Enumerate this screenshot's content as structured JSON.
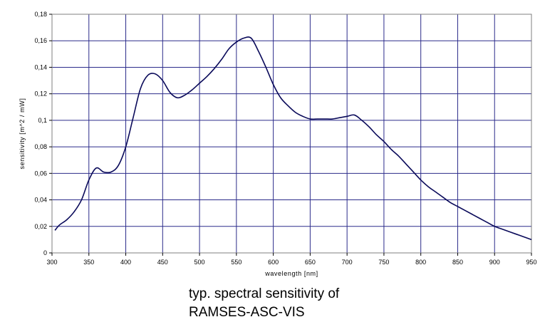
{
  "chart_data": {
    "type": "line",
    "xlabel": "wavelength [nm]",
    "ylabel": "sensitivity [m^2 / mW]",
    "xlim": [
      300,
      950
    ],
    "ylim": [
      0,
      0.18
    ],
    "x_ticks": [
      300,
      350,
      400,
      450,
      500,
      550,
      600,
      650,
      700,
      750,
      800,
      850,
      900,
      950
    ],
    "x_tick_labels": [
      "300",
      "350",
      "400",
      "450",
      "500",
      "550",
      "600",
      "650",
      "700",
      "750",
      "800",
      "850",
      "900",
      "950"
    ],
    "y_ticks": [
      0,
      0.02,
      0.04,
      0.06,
      0.08,
      0.1,
      0.12,
      0.14,
      0.16,
      0.18
    ],
    "y_tick_labels": [
      "0",
      "0,02",
      "0,04",
      "0,06",
      "0,08",
      "0,1",
      "0,12",
      "0,14",
      "0,16",
      "0,18"
    ],
    "grid": true,
    "legend": "none",
    "series": [
      {
        "color": "#0a0a5a",
        "x": [
          304,
          310,
          320,
          330,
          340,
          350,
          360,
          370,
          380,
          390,
          400,
          410,
          420,
          430,
          440,
          450,
          460,
          470,
          480,
          490,
          500,
          510,
          520,
          530,
          540,
          550,
          560,
          570,
          580,
          590,
          600,
          610,
          620,
          630,
          640,
          650,
          660,
          670,
          680,
          690,
          700,
          710,
          720,
          730,
          740,
          750,
          760,
          770,
          780,
          790,
          800,
          810,
          820,
          830,
          840,
          850,
          860,
          870,
          880,
          890,
          900,
          910,
          920,
          930,
          940,
          950
        ],
        "y": [
          0.017,
          0.021,
          0.025,
          0.031,
          0.04,
          0.055,
          0.064,
          0.061,
          0.061,
          0.066,
          0.08,
          0.102,
          0.124,
          0.134,
          0.135,
          0.13,
          0.121,
          0.117,
          0.119,
          0.123,
          0.128,
          0.133,
          0.139,
          0.146,
          0.154,
          0.159,
          0.162,
          0.162,
          0.152,
          0.14,
          0.127,
          0.117,
          0.111,
          0.106,
          0.103,
          0.101,
          0.101,
          0.101,
          0.101,
          0.102,
          0.103,
          0.104,
          0.1,
          0.095,
          0.089,
          0.084,
          0.078,
          0.073,
          0.067,
          0.061,
          0.055,
          0.05,
          0.046,
          0.042,
          0.038,
          0.035,
          0.032,
          0.029,
          0.026,
          0.023,
          0.02,
          0.018,
          0.016,
          0.014,
          0.012,
          0.01
        ]
      }
    ]
  },
  "caption": {
    "line1": "typ. spectral sensitivity of",
    "line2": "RAMSES-ASC-VIS"
  }
}
